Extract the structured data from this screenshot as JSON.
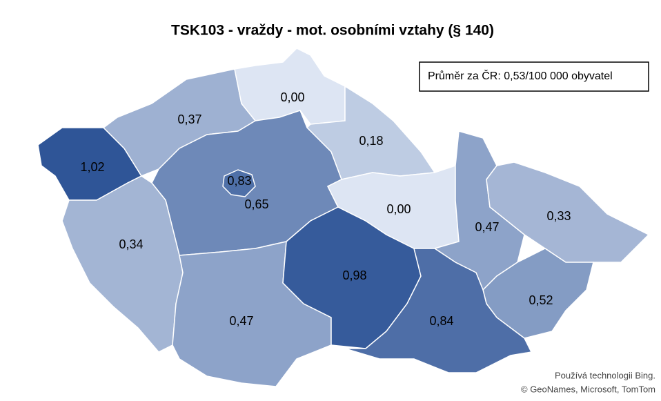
{
  "chart_data": {
    "type": "choropleth",
    "title": "TSK103 - vraždy - mot. osobními vztahy (§ 140)",
    "annotation": "Průměr za ČR: 0,53/100 000 obyvatel",
    "values": [
      1.02,
      0.37,
      0.0,
      0.18,
      0.83,
      0.65,
      0.34,
      0.47,
      0.98,
      0.0,
      0.47,
      0.33,
      0.52,
      0.84
    ],
    "value_labels": [
      "1,02",
      "0,37",
      "0,00",
      "0,18",
      "0,83",
      "0,65",
      "0,34",
      "0,47",
      "0,98",
      "0,00",
      "0,47",
      "0,33",
      "0,52",
      "0,84"
    ],
    "color_scale": [
      "#dde5f3",
      "#2f5597"
    ],
    "attribution": [
      "Používá technologii Bing.",
      "© GeoNames, Microsoft, TomTom"
    ]
  }
}
